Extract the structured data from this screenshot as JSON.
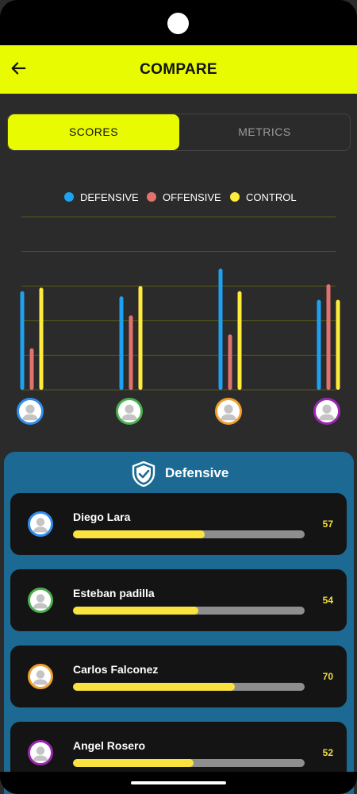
{
  "app": {
    "title": "COMPARE"
  },
  "tabs": [
    {
      "label": "SCORES",
      "active": true
    },
    {
      "label": "METRICS",
      "active": false
    }
  ],
  "legend": [
    {
      "label": "DEFENSIVE",
      "color": "#1da1f2"
    },
    {
      "label": "OFFENSIVE",
      "color": "#e2726e"
    },
    {
      "label": "CONTROL",
      "color": "#ffeb3b"
    }
  ],
  "chart_data": {
    "type": "bar",
    "categories": [
      "Diego Lara",
      "Esteban padilla",
      "Carlos Falconez",
      "Angel Rosero"
    ],
    "series": [
      {
        "name": "DEFENSIVE",
        "values": [
          57,
          54,
          70,
          52
        ]
      },
      {
        "name": "OFFENSIVE",
        "values": [
          24,
          43,
          32,
          61
        ]
      },
      {
        "name": "CONTROL",
        "values": [
          59,
          60,
          57,
          52
        ]
      }
    ],
    "ylim": [
      0,
      100
    ],
    "grid": true
  },
  "panel": {
    "title": "Defensive",
    "players": [
      {
        "name": "Diego Lara",
        "value": "57",
        "fraction": 0.57,
        "ring_color": "#2f8ef0"
      },
      {
        "name": "Esteban padilla",
        "value": "54",
        "fraction": 0.54,
        "ring_color": "#4caf50"
      },
      {
        "name": "Carlos Falconez",
        "value": "70",
        "fraction": 0.7,
        "ring_color": "#f0a02b"
      },
      {
        "name": "Angel Rosero",
        "value": "52",
        "fraction": 0.52,
        "ring_color": "#9c27b0"
      }
    ]
  }
}
